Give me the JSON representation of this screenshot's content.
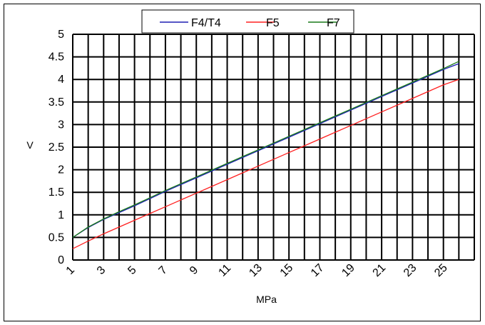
{
  "chart_data": {
    "type": "line",
    "title": "",
    "xlabel": "MPa",
    "ylabel": "V",
    "x_tick_labels": [
      "1",
      "3",
      "5",
      "7",
      "9",
      "11",
      "13",
      "15",
      "17",
      "19",
      "21",
      "23",
      "25"
    ],
    "y_tick_labels": [
      "0",
      "0.5",
      "1",
      "1.5",
      "2",
      "2.5",
      "3",
      "3.5",
      "4",
      "4.5",
      "5"
    ],
    "xlim": [
      1,
      27
    ],
    "ylim": [
      0,
      5
    ],
    "grid": true,
    "legend_position": "top",
    "series": [
      {
        "name": "F4/T4",
        "color": "#1f1fb4",
        "x": [
          1,
          2,
          3,
          4,
          5,
          6,
          7,
          8,
          9,
          10,
          11,
          12,
          13,
          14,
          15,
          16,
          17,
          18,
          19,
          20,
          21,
          22,
          23,
          24,
          25,
          26
        ],
        "y": [
          0.5,
          0.72,
          0.9,
          1.05,
          1.2,
          1.36,
          1.52,
          1.67,
          1.82,
          1.97,
          2.12,
          2.27,
          2.42,
          2.57,
          2.72,
          2.87,
          3.02,
          3.17,
          3.32,
          3.47,
          3.62,
          3.77,
          3.92,
          4.07,
          4.22,
          4.35
        ]
      },
      {
        "name": "F5",
        "color": "#ff2020",
        "x": [
          1,
          2,
          3,
          4,
          5,
          6,
          7,
          8,
          9,
          10,
          11,
          12,
          13,
          14,
          15,
          16,
          17,
          18,
          19,
          20,
          21,
          22,
          23,
          24,
          25,
          26
        ],
        "y": [
          0.25,
          0.42,
          0.58,
          0.73,
          0.88,
          1.03,
          1.18,
          1.33,
          1.48,
          1.63,
          1.78,
          1.93,
          2.08,
          2.23,
          2.38,
          2.53,
          2.68,
          2.83,
          2.98,
          3.13,
          3.28,
          3.43,
          3.58,
          3.73,
          3.88,
          4.0
        ]
      },
      {
        "name": "F7",
        "color": "#1a7a1a",
        "x": [
          1,
          2,
          3,
          4,
          5,
          6,
          7,
          8,
          9,
          10,
          11,
          12,
          13,
          14,
          15,
          16,
          17,
          18,
          19,
          20,
          21,
          22,
          23,
          24,
          25,
          26
        ],
        "y": [
          0.5,
          0.73,
          0.91,
          1.07,
          1.22,
          1.38,
          1.54,
          1.69,
          1.84,
          1.99,
          2.14,
          2.29,
          2.44,
          2.59,
          2.74,
          2.89,
          3.04,
          3.19,
          3.34,
          3.49,
          3.64,
          3.79,
          3.94,
          4.09,
          4.24,
          4.4
        ]
      }
    ]
  }
}
